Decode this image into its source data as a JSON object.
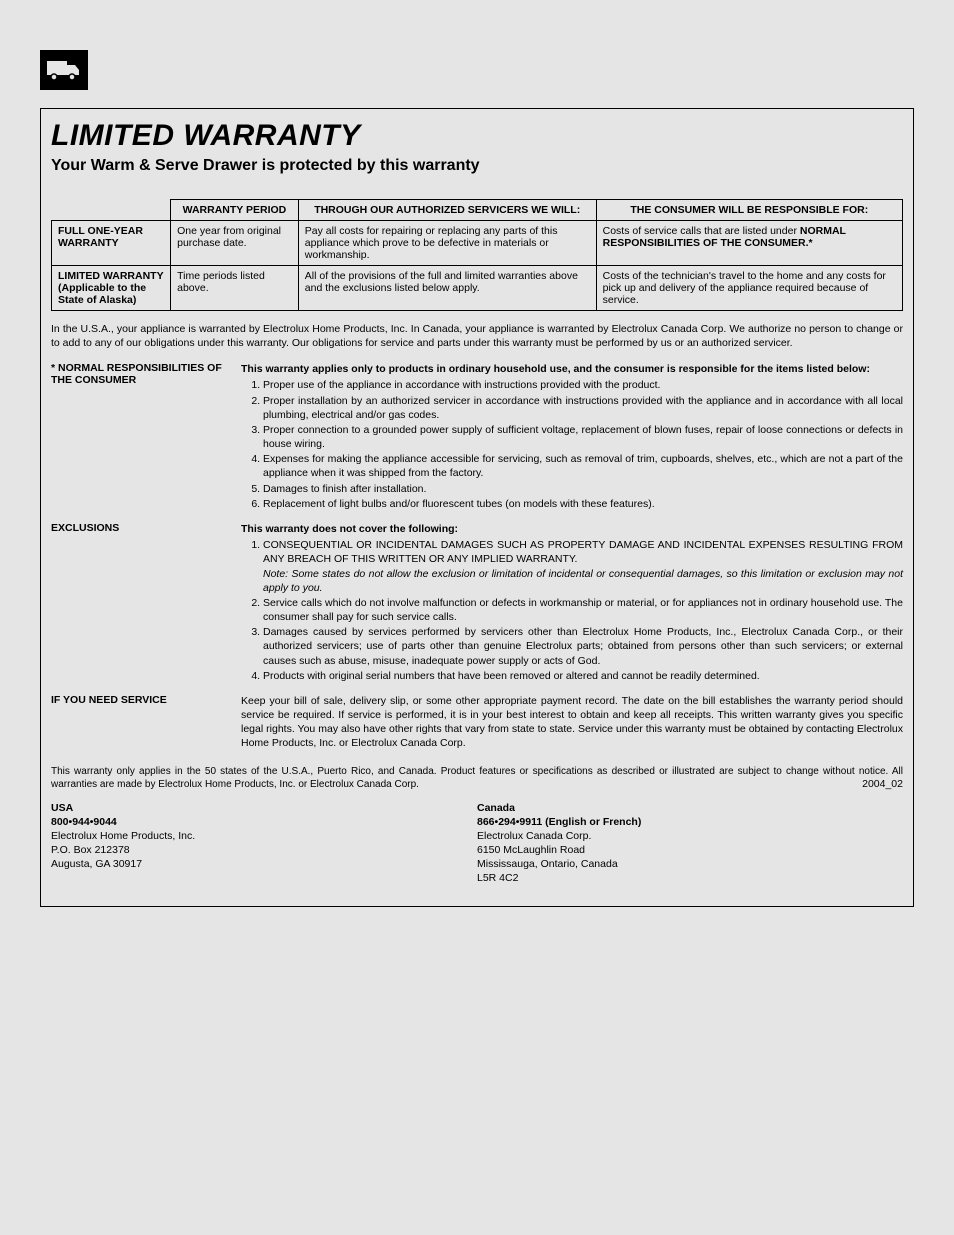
{
  "header": {
    "title": "LIMITED WARRANTY",
    "subtitle": "Your Warm & Serve Drawer is protected by this warranty"
  },
  "warranty_table": {
    "columns": [
      "",
      "WARRANTY PERIOD",
      "THROUGH OUR AUTHORIZED SERVICERS WE WILL:",
      "THE CONSUMER WILL BE RESPONSIBLE FOR:"
    ],
    "col_widths": [
      "14%",
      "15%",
      "35%",
      "36%"
    ],
    "rows": [
      {
        "label": "FULL ONE-YEAR WARRANTY",
        "period": "One year from original purchase date.",
        "servicer_pre": "Pay all costs for repairing or replacing any parts of this appliance which prove to be defective in materials or workmanship.",
        "consumer_pre": "Costs of service calls that are listed under ",
        "consumer_bold": "NORMAL RESPONSIBILITIES OF THE CONSUMER.*"
      },
      {
        "label": "LIMITED WARRANTY (Applicable to the State of Alaska)",
        "period": "Time periods listed above.",
        "servicer_pre": "All of the provisions of the full and limited warranties above and the exclusions listed below apply.",
        "consumer_pre": "Costs of the technician's travel to the home and any costs for pick up and delivery of the appliance required because of service.",
        "consumer_bold": ""
      }
    ]
  },
  "intro_para": "In the U.S.A., your appliance is warranted by Electrolux Home Products, Inc. In Canada, your appliance is warranted by Electrolux Canada Corp. We authorize no person to change or to add to any of our obligations under this warranty. Our obligations for service and parts under this warranty must be performed by us or an authorized servicer.",
  "normal_resp": {
    "label": "* NORMAL RESPONSIBILITIES OF THE CONSUMER",
    "intro": "This warranty applies only to products in ordinary household use, and the consumer is responsible for the items listed below:",
    "items": [
      "Proper use of the appliance in accordance with instructions provided with the product.",
      "Proper installation by an authorized servicer in accordance with instructions provided with the appliance and in accordance with all local plumbing, electrical and/or gas codes.",
      "Proper connection to a grounded power supply of sufficient voltage, replacement of blown fuses, repair of loose connections or defects in house wiring.",
      "Expenses for making the appliance accessible for servicing, such as removal of trim, cupboards, shelves, etc., which are not a part of the appliance when it was shipped from the factory.",
      "Damages to finish after installation.",
      "Replacement of light bulbs and/or fluorescent tubes (on models with these features)."
    ]
  },
  "exclusions": {
    "label": "EXCLUSIONS",
    "intro": "This warranty does not cover the following:",
    "items": [
      {
        "text": "CONSEQUENTIAL OR INCIDENTAL DAMAGES SUCH AS PROPERTY DAMAGE AND INCIDENTAL EXPENSES RESULTING FROM ANY BREACH OF THIS WRITTEN OR ANY IMPLIED WARRANTY.",
        "note": "Note: Some states do not allow the exclusion or limitation of incidental or consequential damages, so this limitation or exclusion may not apply to you."
      },
      {
        "text": "Service calls which do not involve malfunction or defects in workmanship or material, or for appliances not in ordinary household use. The consumer shall pay for such service calls."
      },
      {
        "text": "Damages caused by services performed by servicers other than Electrolux Home Products, Inc., Electrolux Canada Corp., or their authorized servicers; use of parts other than genuine Electrolux parts; obtained from persons other than such servicers; or external causes such as abuse, misuse, inadequate power supply or acts of God."
      },
      {
        "text": "Products with original serial numbers that have been removed or altered and cannot be readily determined."
      }
    ]
  },
  "service": {
    "label": "IF YOU NEED SERVICE",
    "body": "Keep your bill of sale, delivery slip, or some other appropriate payment record. The date on the bill establishes the warranty period should service be required. If service is performed, it is in your best interest to obtain and keep all receipts. This written warranty gives you specific legal rights. You may also have other rights that vary from state to state. Service under this warranty must be obtained by contacting Electrolux Home Products, Inc. or Electrolux Canada Corp."
  },
  "fineprint": "This warranty only applies in the 50 states of the U.S.A., Puerto Rico, and Canada. Product features or specifications as described or illustrated are subject to change without notice. All warranties are made by Electrolux Home Products, Inc. or Electrolux Canada Corp.",
  "revision": "2004_02",
  "contacts": {
    "usa": {
      "country": "USA",
      "phone": "800•944•9044",
      "lines": [
        "Electrolux Home Products, Inc.",
        "P.O. Box 212378",
        "Augusta, GA  30917"
      ]
    },
    "canada": {
      "country": "Canada",
      "phone": "866•294•9911 (English or French)",
      "lines": [
        "Electrolux Canada Corp.",
        "6150 McLaughlin Road",
        "Mississauga, Ontario, Canada",
        "L5R 4C2"
      ]
    }
  }
}
